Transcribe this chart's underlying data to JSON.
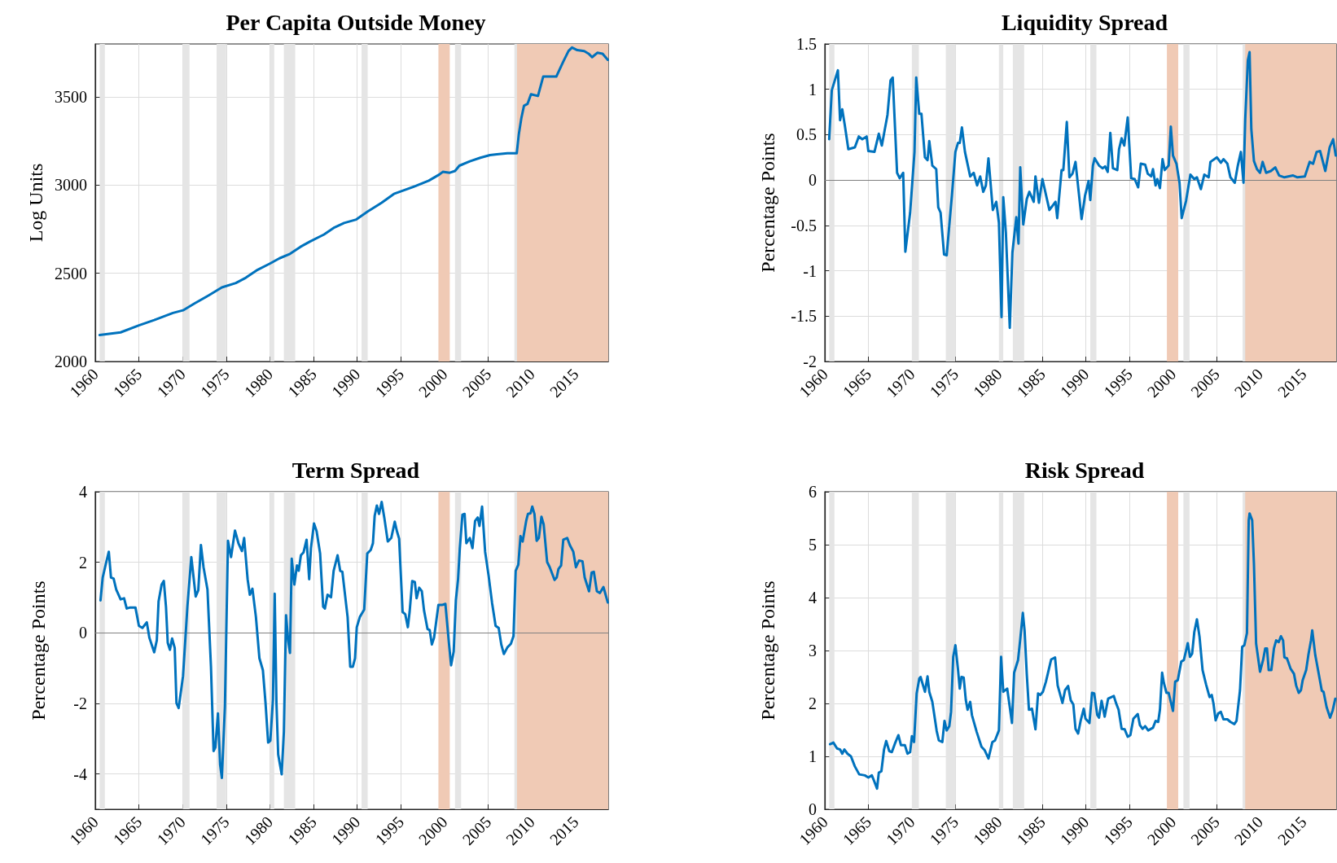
{
  "chart_data": [
    {
      "type": "line",
      "title": "Per Capita Outside Money",
      "ylabel": "Log Units",
      "color": "#0072bd",
      "grid": true,
      "xlim": [
        1960,
        2018.75
      ],
      "xticks": [
        1960,
        1965,
        1970,
        1975,
        1980,
        1985,
        1990,
        1995,
        2000,
        2005,
        2010,
        2015
      ],
      "ylim": [
        2000,
        3800
      ],
      "yticks": [
        2000,
        2500,
        3000,
        3500
      ],
      "bands": [
        {
          "axis": "x",
          "from": 1960.5,
          "to": 1961.1,
          "color": "#e5e5e5"
        },
        {
          "axis": "x",
          "from": 1970.0,
          "to": 1970.8,
          "color": "#e5e5e5"
        },
        {
          "axis": "x",
          "from": 1973.9,
          "to": 1975.0,
          "color": "#e5e5e5"
        },
        {
          "axis": "x",
          "from": 1980.0,
          "to": 1980.5,
          "color": "#e5e5e5"
        },
        {
          "axis": "x",
          "from": 1981.6,
          "to": 1982.9,
          "color": "#e5e5e5"
        },
        {
          "axis": "x",
          "from": 1990.5,
          "to": 1991.2,
          "color": "#e5e5e5"
        },
        {
          "axis": "x",
          "from": 2001.2,
          "to": 2001.9,
          "color": "#e5e5e5"
        },
        {
          "axis": "x",
          "from": 2008.0,
          "to": 2009.4,
          "color": "#e5e5e5"
        },
        {
          "axis": "x",
          "from": 1999.3,
          "to": 2000.6,
          "color": "#f0cab5"
        },
        {
          "axis": "x",
          "from": 2008.3,
          "to": 2018.75,
          "color": "#f0cab5"
        }
      ],
      "x": [
        1960.5,
        1962.9,
        1965,
        1966.75,
        1968.9,
        1970.05,
        1971.4,
        1973,
        1974.5,
        1976.1,
        1977.25,
        1978.6,
        1980,
        1981.1,
        1982.3,
        1983.5,
        1984.6,
        1986.2,
        1987.4,
        1988.5,
        1989.9,
        1991.2,
        1992.8,
        1994.2,
        1995.3,
        1996.7,
        1998.2,
        1999.4,
        1999.8,
        2000.6,
        2001.2,
        2001.7,
        2002.9,
        2004.1,
        2005.2,
        2006,
        2007.2,
        2008.27,
        2008.5,
        2008.8,
        2009.1,
        2009.5,
        2009.9,
        2010.7,
        2011.3,
        2012,
        2012.8,
        2013.6,
        2014.2,
        2014.6,
        2015.2,
        2016,
        2016.5,
        2016.9,
        2017.5,
        2018.1,
        2018.7
      ],
      "values": [
        2150,
        2165,
        2205,
        2235,
        2275,
        2290,
        2330,
        2375,
        2420,
        2445,
        2475,
        2520,
        2555,
        2585,
        2610,
        2650,
        2680,
        2720,
        2760,
        2785,
        2805,
        2850,
        2900,
        2950,
        2970,
        2995,
        3025,
        3060,
        3075,
        3070,
        3080,
        3110,
        3135,
        3155,
        3170,
        3175,
        3180,
        3180,
        3285,
        3380,
        3450,
        3460,
        3515,
        3505,
        3615,
        3615,
        3615,
        3700,
        3760,
        3780,
        3765,
        3760,
        3745,
        3725,
        3750,
        3745,
        3710
      ]
    },
    {
      "type": "line",
      "title": "Liquidity Spread",
      "ylabel": "Percentage Points",
      "color": "#0072bd",
      "grid": true,
      "xlim": [
        1960,
        2018.75
      ],
      "xticks": [
        1960,
        1965,
        1970,
        1975,
        1980,
        1985,
        1990,
        1995,
        2000,
        2005,
        2010,
        2015
      ],
      "ylim": [
        -2,
        1.5
      ],
      "yticks": [
        -2,
        -1.5,
        -1,
        -0.5,
        0,
        0.5,
        1,
        1.5
      ],
      "ref_lines": [
        {
          "axis": "y",
          "value": 0,
          "color": "#808080"
        }
      ],
      "bands": [
        {
          "axis": "x",
          "from": 1960.5,
          "to": 1961.1,
          "color": "#e5e5e5"
        },
        {
          "axis": "x",
          "from": 1970.0,
          "to": 1970.8,
          "color": "#e5e5e5"
        },
        {
          "axis": "x",
          "from": 1973.9,
          "to": 1975.0,
          "color": "#e5e5e5"
        },
        {
          "axis": "x",
          "from": 1980.0,
          "to": 1980.5,
          "color": "#e5e5e5"
        },
        {
          "axis": "x",
          "from": 1981.6,
          "to": 1982.9,
          "color": "#e5e5e5"
        },
        {
          "axis": "x",
          "from": 1990.5,
          "to": 1991.2,
          "color": "#e5e5e5"
        },
        {
          "axis": "x",
          "from": 2001.2,
          "to": 2001.9,
          "color": "#e5e5e5"
        },
        {
          "axis": "x",
          "from": 2008.0,
          "to": 2009.4,
          "color": "#e5e5e5"
        },
        {
          "axis": "x",
          "from": 1999.3,
          "to": 2000.6,
          "color": "#f0cab5"
        },
        {
          "axis": "x",
          "from": 2008.3,
          "to": 2018.75,
          "color": "#f0cab5"
        }
      ],
      "x": [
        1960.5,
        1960.8,
        1961.5,
        1961.75,
        1962,
        1962.3,
        1962.7,
        1963.45,
        1963.9,
        1964.3,
        1964.8,
        1965,
        1965.7,
        1966.2,
        1966.55,
        1967.2,
        1967.55,
        1967.8,
        1968.3,
        1968.6,
        1969,
        1969.25,
        1969.8,
        1970.3,
        1970.5,
        1970.85,
        1971.1,
        1971.5,
        1971.8,
        1972,
        1972.35,
        1972.8,
        1973.03,
        1973.3,
        1973.7,
        1974,
        1974.6,
        1975,
        1975.3,
        1975.5,
        1975.75,
        1976.1,
        1976.7,
        1977.1,
        1977.5,
        1977.85,
        1978.2,
        1978.5,
        1978.8,
        1979.3,
        1979.7,
        1980,
        1980.3,
        1980.5,
        1980.8,
        1981.25,
        1981.55,
        1982,
        1982.25,
        1982.45,
        1982.8,
        1983.2,
        1983.5,
        1984,
        1984.2,
        1984.6,
        1985,
        1985.8,
        1986.5,
        1986.7,
        1987.2,
        1987.4,
        1987.8,
        1988.1,
        1988.45,
        1988.8,
        1989.5,
        1989.9,
        1990.3,
        1990.5,
        1990.8,
        1991,
        1991.5,
        1991.9,
        1992.2,
        1992.5,
        1992.8,
        1993.1,
        1993.6,
        1993.8,
        1994.1,
        1994.4,
        1994.8,
        1995.2,
        1995.6,
        1996,
        1996.3,
        1996.8,
        1997.1,
        1997.5,
        1997.7,
        1998,
        1998.2,
        1998.5,
        1998.8,
        1999.05,
        1999.5,
        1999.75,
        2000,
        2000.4,
        2000.75,
        2001,
        2001.5,
        2002,
        2002.45,
        2002.75,
        2003.2,
        2003.6,
        2004.1,
        2004.3,
        2005.05,
        2005.5,
        2005.8,
        2006.25,
        2006.6,
        2007.1,
        2007.45,
        2007.8,
        2008.1,
        2008.3,
        2008.6,
        2008.8,
        2009,
        2009.3,
        2009.65,
        2010,
        2010.3,
        2010.7,
        2011.25,
        2011.75,
        2012.2,
        2012.8,
        2013.8,
        2014.3,
        2015.15,
        2015.7,
        2016.1,
        2016.5,
        2016.9,
        2017.5,
        2018,
        2018.4,
        2018.7
      ],
      "values": [
        0.45,
        0.99,
        1.21,
        0.66,
        0.78,
        0.6,
        0.34,
        0.36,
        0.48,
        0.45,
        0.48,
        0.32,
        0.31,
        0.51,
        0.38,
        0.72,
        1.1,
        1.13,
        0.08,
        0.02,
        0.08,
        -0.79,
        -0.36,
        0.31,
        1.13,
        0.73,
        0.73,
        0.25,
        0.22,
        0.43,
        0.16,
        0.12,
        -0.3,
        -0.36,
        -0.82,
        -0.83,
        -0.17,
        0.31,
        0.41,
        0.41,
        0.58,
        0.31,
        0.04,
        0.08,
        -0.06,
        0.04,
        -0.13,
        -0.06,
        0.24,
        -0.33,
        -0.24,
        -0.47,
        -1.51,
        -0.19,
        -0.58,
        -1.63,
        -0.8,
        -0.41,
        -0.7,
        0.14,
        -0.49,
        -0.21,
        -0.13,
        -0.24,
        0.04,
        -0.25,
        0.01,
        -0.33,
        -0.24,
        -0.42,
        0.11,
        0.11,
        0.64,
        0.03,
        0.07,
        0.2,
        -0.43,
        -0.17,
        -0.01,
        -0.22,
        0.16,
        0.24,
        0.16,
        0.13,
        0.15,
        0.09,
        0.52,
        0.13,
        0.11,
        0.34,
        0.46,
        0.38,
        0.69,
        0.02,
        0.01,
        -0.08,
        0.18,
        0.17,
        0.07,
        0.04,
        0.12,
        -0.06,
        0.01,
        -0.09,
        0.23,
        0.11,
        0.16,
        0.59,
        0.27,
        0.18,
        -0.03,
        -0.42,
        -0.23,
        0.06,
        0.01,
        0.03,
        -0.1,
        0.06,
        0.03,
        0.2,
        0.25,
        0.19,
        0.23,
        0.18,
        0.03,
        -0.03,
        0.16,
        0.31,
        -0.03,
        0.67,
        1.32,
        1.41,
        0.56,
        0.21,
        0.12,
        0.08,
        0.2,
        0.08,
        0.1,
        0.14,
        0.05,
        0.03,
        0.05,
        0.03,
        0.04,
        0.2,
        0.18,
        0.31,
        0.32,
        0.1,
        0.36,
        0.45,
        0.27
      ]
    },
    {
      "type": "line",
      "title": "Term Spread",
      "ylabel": "Percentage Points",
      "color": "#0072bd",
      "grid": true,
      "xlim": [
        1960,
        2018.75
      ],
      "xticks": [
        1960,
        1965,
        1970,
        1975,
        1980,
        1985,
        1990,
        1995,
        2000,
        2005,
        2010,
        2015
      ],
      "ylim": [
        -5,
        4
      ],
      "yticks": [
        -4,
        -2,
        0,
        2,
        4
      ],
      "ref_lines": [
        {
          "axis": "y",
          "value": 0,
          "color": "#808080"
        }
      ],
      "bands": [
        {
          "axis": "x",
          "from": 1960.5,
          "to": 1961.1,
          "color": "#e5e5e5"
        },
        {
          "axis": "x",
          "from": 1970.0,
          "to": 1970.8,
          "color": "#e5e5e5"
        },
        {
          "axis": "x",
          "from": 1973.9,
          "to": 1975.0,
          "color": "#e5e5e5"
        },
        {
          "axis": "x",
          "from": 1980.0,
          "to": 1980.5,
          "color": "#e5e5e5"
        },
        {
          "axis": "x",
          "from": 1981.6,
          "to": 1982.9,
          "color": "#e5e5e5"
        },
        {
          "axis": "x",
          "from": 1990.5,
          "to": 1991.2,
          "color": "#e5e5e5"
        },
        {
          "axis": "x",
          "from": 2001.2,
          "to": 2001.9,
          "color": "#e5e5e5"
        },
        {
          "axis": "x",
          "from": 2008.0,
          "to": 2009.4,
          "color": "#e5e5e5"
        },
        {
          "axis": "x",
          "from": 1999.3,
          "to": 2000.6,
          "color": "#f0cab5"
        },
        {
          "axis": "x",
          "from": 2008.3,
          "to": 2018.75,
          "color": "#f0cab5"
        }
      ],
      "x": [
        1960.6,
        1960.85,
        1961.3,
        1961.55,
        1961.8,
        1962.1,
        1962.4,
        1962.9,
        1963.3,
        1963.6,
        1964,
        1964.6,
        1965,
        1965.4,
        1965.9,
        1966.2,
        1966.75,
        1967.05,
        1967.25,
        1967.6,
        1967.85,
        1968.1,
        1968.3,
        1968.55,
        1968.8,
        1969.1,
        1969.3,
        1969.55,
        1970.05,
        1970.55,
        1971,
        1971.5,
        1971.8,
        1972.1,
        1972.4,
        1972.85,
        1973.25,
        1973.55,
        1973.75,
        1974.05,
        1974.3,
        1974.5,
        1974.85,
        1975.2,
        1975.55,
        1976,
        1976.4,
        1976.8,
        1977.05,
        1977.45,
        1977.7,
        1978,
        1978.4,
        1978.8,
        1979.2,
        1979.5,
        1979.8,
        1980.05,
        1980.35,
        1980.55,
        1980.75,
        1980.95,
        1981.35,
        1981.6,
        1981.85,
        1982.1,
        1982.3,
        1982.5,
        1982.8,
        1983.1,
        1983.3,
        1983.55,
        1983.85,
        1984.2,
        1984.5,
        1984.7,
        1985.05,
        1985.35,
        1985.75,
        1986.1,
        1986.3,
        1986.6,
        1987,
        1987.3,
        1987.75,
        1988.05,
        1988.3,
        1988.9,
        1989.2,
        1989.5,
        1989.75,
        1989.95,
        1990.3,
        1990.8,
        1991.15,
        1991.55,
        1991.8,
        1992,
        1992.25,
        1992.5,
        1992.8,
        1993.1,
        1993.5,
        1993.9,
        1994.3,
        1994.55,
        1994.8,
        1995.2,
        1995.5,
        1995.8,
        1996,
        1996.3,
        1996.6,
        1996.8,
        1997.1,
        1997.4,
        1997.65,
        1998.05,
        1998.3,
        1998.55,
        1998.8,
        1999.3,
        1999.7,
        2000.1,
        2000.5,
        2000.75,
        2001.05,
        2001.3,
        2001.55,
        2001.75,
        2002.05,
        2002.3,
        2002.5,
        2002.9,
        2003.2,
        2003.5,
        2003.8,
        2004,
        2004.3,
        2004.65,
        2005.05,
        2005.45,
        2005.85,
        2006.2,
        2006.5,
        2006.8,
        2007.2,
        2007.6,
        2007.9,
        2008.15,
        2008.45,
        2008.7,
        2008.95,
        2009.35,
        2009.55,
        2009.85,
        2010.05,
        2010.3,
        2010.55,
        2010.8,
        2011.1,
        2011.35,
        2011.75,
        2012.05,
        2012.6,
        2012.85,
        2013.05,
        2013.35,
        2013.6,
        2014.05,
        2014.35,
        2014.75,
        2015.05,
        2015.4,
        2015.8,
        2016.05,
        2016.55,
        2016.85,
        2017.1,
        2017.45,
        2017.8,
        2018.2,
        2018.7
      ],
      "values": [
        0.92,
        1.57,
        2.05,
        2.3,
        1.57,
        1.54,
        1.23,
        0.95,
        0.98,
        0.69,
        0.72,
        0.72,
        0.2,
        0.14,
        0.3,
        -0.14,
        -0.55,
        -0.21,
        0.89,
        1.37,
        1.47,
        0.74,
        -0.28,
        -0.48,
        -0.16,
        -0.43,
        -1.99,
        -2.13,
        -1.23,
        0.74,
        2.15,
        1.03,
        1.21,
        2.49,
        1.86,
        1.23,
        -0.96,
        -3.35,
        -3.25,
        -2.28,
        -3.74,
        -4.11,
        -2.08,
        2.61,
        2.15,
        2.9,
        2.54,
        2.32,
        2.69,
        1.52,
        1.08,
        1.25,
        0.45,
        -0.72,
        -1.06,
        -1.99,
        -3.11,
        -3.06,
        -1.89,
        1.11,
        -1.97,
        -3.45,
        -4.01,
        -2.81,
        0.5,
        -0.23,
        -0.57,
        2.1,
        1.37,
        1.91,
        1.76,
        2.2,
        2.28,
        2.64,
        1.52,
        2.4,
        3.1,
        2.88,
        2.25,
        0.74,
        0.69,
        1.08,
        1.01,
        1.76,
        2.2,
        1.76,
        1.73,
        0.45,
        -0.96,
        -0.96,
        -0.72,
        0.16,
        0.45,
        0.66,
        2.25,
        2.35,
        2.54,
        3.32,
        3.61,
        3.37,
        3.71,
        3.27,
        2.59,
        2.69,
        3.15,
        2.88,
        2.67,
        0.59,
        0.53,
        0.16,
        0.59,
        1.47,
        1.44,
        0.98,
        1.28,
        1.18,
        0.64,
        0.11,
        0.08,
        -0.33,
        -0.14,
        0.79,
        0.79,
        0.82,
        -0.28,
        -0.92,
        -0.53,
        0.93,
        1.52,
        2.4,
        3.35,
        3.37,
        2.54,
        2.69,
        2.4,
        3.17,
        3.27,
        3.03,
        3.58,
        2.3,
        1.62,
        0.84,
        0.2,
        0.14,
        -0.33,
        -0.6,
        -0.41,
        -0.31,
        -0.09,
        1.76,
        1.93,
        2.74,
        2.59,
        3.17,
        3.37,
        3.39,
        3.58,
        3.37,
        2.61,
        2.69,
        3.29,
        3.08,
        2.01,
        1.86,
        1.5,
        1.57,
        1.81,
        1.91,
        2.64,
        2.69,
        2.49,
        2.3,
        1.86,
        2.05,
        2.03,
        1.57,
        1.18,
        1.71,
        1.73,
        1.18,
        1.13,
        1.3,
        0.86
      ]
    },
    {
      "type": "line",
      "title": "Risk Spread",
      "ylabel": "Percentage Points",
      "color": "#0072bd",
      "grid": true,
      "xlim": [
        1960,
        2018.75
      ],
      "xticks": [
        1960,
        1965,
        1970,
        1975,
        1980,
        1985,
        1990,
        1995,
        2000,
        2005,
        2010,
        2015
      ],
      "ylim": [
        0,
        6
      ],
      "yticks": [
        0,
        1,
        2,
        3,
        4,
        5,
        6
      ],
      "bands": [
        {
          "axis": "x",
          "from": 1960.5,
          "to": 1961.1,
          "color": "#e5e5e5"
        },
        {
          "axis": "x",
          "from": 1970.0,
          "to": 1970.8,
          "color": "#e5e5e5"
        },
        {
          "axis": "x",
          "from": 1973.9,
          "to": 1975.0,
          "color": "#e5e5e5"
        },
        {
          "axis": "x",
          "from": 1980.0,
          "to": 1980.5,
          "color": "#e5e5e5"
        },
        {
          "axis": "x",
          "from": 1981.6,
          "to": 1982.9,
          "color": "#e5e5e5"
        },
        {
          "axis": "x",
          "from": 1990.5,
          "to": 1991.2,
          "color": "#e5e5e5"
        },
        {
          "axis": "x",
          "from": 2001.2,
          "to": 2001.9,
          "color": "#e5e5e5"
        },
        {
          "axis": "x",
          "from": 2008.0,
          "to": 2009.4,
          "color": "#e5e5e5"
        },
        {
          "axis": "x",
          "from": 1999.3,
          "to": 2000.6,
          "color": "#f0cab5"
        },
        {
          "axis": "x",
          "from": 2008.3,
          "to": 2018.75,
          "color": "#f0cab5"
        }
      ],
      "x": [
        1960.6,
        1960.98,
        1961.4,
        1961.75,
        1962,
        1962.25,
        1962.6,
        1963,
        1963.45,
        1963.95,
        1964.6,
        1965,
        1965.4,
        1965.7,
        1966,
        1966.2,
        1966.5,
        1966.8,
        1967.05,
        1967.4,
        1967.7,
        1968.05,
        1968.45,
        1968.75,
        1969.2,
        1969.5,
        1969.8,
        1970,
        1970.25,
        1970.55,
        1970.85,
        1971,
        1971.5,
        1971.8,
        1972,
        1972.35,
        1972.85,
        1973.1,
        1973.5,
        1973.75,
        1974,
        1974.3,
        1974.5,
        1974.75,
        1975,
        1975.3,
        1975.5,
        1975.7,
        1975.95,
        1976.2,
        1976.4,
        1976.7,
        1976.9,
        1977.45,
        1978,
        1978.35,
        1978.8,
        1979.25,
        1979.55,
        1980,
        1980.25,
        1980.5,
        1980.95,
        1981.25,
        1981.5,
        1981.75,
        1982.2,
        1982.45,
        1982.75,
        1982.95,
        1983.2,
        1983.45,
        1983.8,
        1984.2,
        1984.5,
        1984.75,
        1985.05,
        1985.4,
        1986,
        1986.45,
        1986.75,
        1987.3,
        1987.6,
        1987.95,
        1988.25,
        1988.55,
        1988.8,
        1989.1,
        1989.4,
        1989.75,
        1989.95,
        1990.4,
        1990.7,
        1990.95,
        1991.3,
        1991.5,
        1991.8,
        1992.15,
        1992.55,
        1992.8,
        1993.2,
        1993.45,
        1993.75,
        1994.1,
        1994.45,
        1994.8,
        1995.1,
        1995.45,
        1995.95,
        1996.2,
        1996.5,
        1996.8,
        1997.15,
        1997.7,
        1998,
        1998.3,
        1998.5,
        1998.75,
        1998.95,
        1999.25,
        1999.5,
        1999.75,
        2000,
        2000.25,
        2000.55,
        2000.95,
        2001.25,
        2001.45,
        2001.7,
        2001.95,
        2002.2,
        2002.45,
        2002.75,
        2003.05,
        2003.4,
        2003.8,
        2004.2,
        2004.45,
        2004.65,
        2004.9,
        2005.2,
        2005.5,
        2005.8,
        2006.25,
        2006.6,
        2007.05,
        2007.3,
        2007.7,
        2007.95,
        2008.2,
        2008.5,
        2008.7,
        2008.8,
        2009.1,
        2009.3,
        2009.55,
        2010,
        2010.35,
        2010.6,
        2010.8,
        2011,
        2011.3,
        2011.6,
        2011.85,
        2012.15,
        2012.4,
        2012.65,
        2012.8,
        2013.1,
        2013.5,
        2013.9,
        2014.15,
        2014.45,
        2014.7,
        2014.9,
        2015.3,
        2015.55,
        2015.85,
        2016,
        2016.35,
        2016.7,
        2017.1,
        2017.3,
        2017.65,
        2018.05,
        2018.35,
        2018.65
      ],
      "values": [
        1.23,
        1.26,
        1.15,
        1.13,
        1.05,
        1.13,
        1.05,
        1.0,
        0.81,
        0.66,
        0.64,
        0.6,
        0.64,
        0.52,
        0.39,
        0.69,
        0.72,
        1.13,
        1.29,
        1.1,
        1.08,
        1.24,
        1.4,
        1.21,
        1.21,
        1.05,
        1.08,
        1.38,
        1.27,
        2.19,
        2.47,
        2.5,
        2.22,
        2.51,
        2.22,
        2.03,
        1.48,
        1.3,
        1.27,
        1.67,
        1.49,
        1.57,
        1.84,
        2.88,
        3.1,
        2.64,
        2.28,
        2.5,
        2.49,
        2.06,
        1.88,
        2.03,
        1.78,
        1.46,
        1.18,
        1.12,
        0.96,
        1.27,
        1.3,
        1.49,
        2.88,
        2.22,
        2.28,
        1.93,
        1.63,
        2.58,
        2.82,
        3.21,
        3.71,
        3.38,
        2.56,
        1.88,
        1.9,
        1.51,
        2.19,
        2.16,
        2.22,
        2.41,
        2.83,
        2.87,
        2.34,
        2.01,
        2.25,
        2.33,
        2.06,
        1.98,
        1.52,
        1.43,
        1.68,
        1.9,
        1.71,
        1.63,
        2.2,
        2.19,
        1.78,
        1.73,
        2.05,
        1.75,
        2.09,
        2.11,
        2.14,
        2.01,
        1.88,
        1.52,
        1.51,
        1.37,
        1.4,
        1.71,
        1.8,
        1.59,
        1.52,
        1.57,
        1.49,
        1.54,
        1.67,
        1.65,
        1.88,
        2.58,
        2.39,
        2.2,
        2.2,
        2.03,
        1.86,
        2.41,
        2.44,
        2.79,
        2.82,
        2.96,
        3.14,
        2.88,
        2.94,
        3.35,
        3.59,
        3.26,
        2.63,
        2.36,
        2.12,
        2.16,
        2.0,
        1.68,
        1.81,
        1.84,
        1.7,
        1.7,
        1.65,
        1.61,
        1.67,
        2.25,
        3.07,
        3.1,
        3.33,
        5.46,
        5.59,
        5.46,
        4.64,
        3.13,
        2.6,
        2.82,
        3.04,
        3.04,
        2.63,
        2.63,
        3.04,
        3.19,
        3.16,
        3.27,
        3.19,
        2.87,
        2.85,
        2.66,
        2.56,
        2.34,
        2.2,
        2.25,
        2.44,
        2.63,
        2.91,
        3.19,
        3.38,
        2.91,
        2.6,
        2.24,
        2.22,
        1.93,
        1.73,
        1.87,
        2.09
      ]
    }
  ]
}
